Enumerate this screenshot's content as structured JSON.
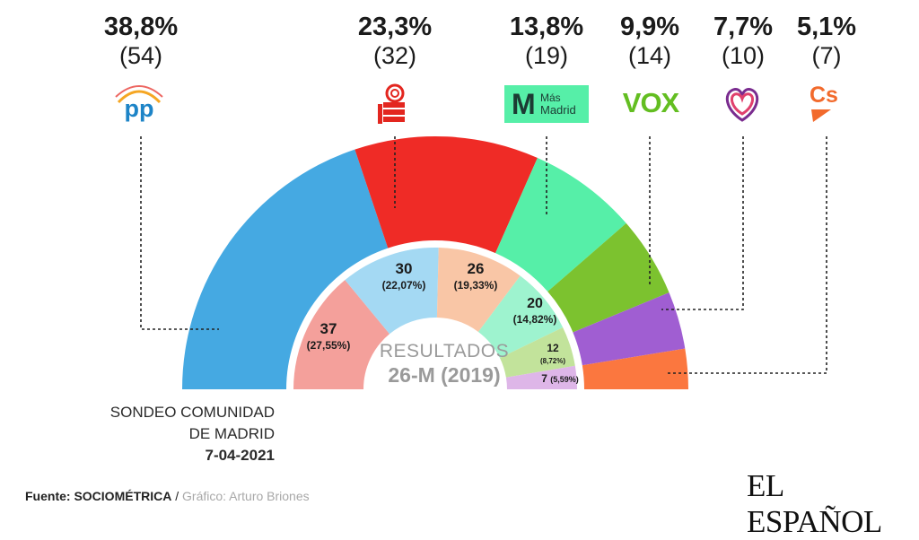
{
  "chart_data": [
    {
      "type": "parliament-semicircle",
      "title": "SONDEO COMUNIDAD DE MADRID",
      "title_lines": [
        "SONDEO COMUNIDAD",
        "DE MADRID"
      ],
      "date": "7-04-2021",
      "series": [
        {
          "party": "PP",
          "pct_label": "38,8%",
          "seats_label": "(54)",
          "pct": 38.8,
          "seats": 54,
          "color": "#45a9e2",
          "logo": "pp-logo"
        },
        {
          "party": "PSOE",
          "pct_label": "23,3%",
          "seats_label": "(32)",
          "pct": 23.3,
          "seats": 32,
          "color": "#ef2b26",
          "logo": "psoe-fist-rose-logo"
        },
        {
          "party": "Más Madrid",
          "pct_label": "13,8%",
          "seats_label": "(19)",
          "pct": 13.8,
          "seats": 19,
          "color": "#56efa8",
          "logo": "mas-madrid-logo"
        },
        {
          "party": "VOX",
          "pct_label": "9,9%",
          "seats_label": "(14)",
          "pct": 9.9,
          "seats": 14,
          "color": "#7cc22f",
          "logo": "vox-logo"
        },
        {
          "party": "Unidas Podemos",
          "pct_label": "7,7%",
          "seats_label": "(10)",
          "pct": 7.7,
          "seats": 10,
          "color": "#a05ed2",
          "logo": "heart-logo"
        },
        {
          "party": "Cs",
          "pct_label": "5,1%",
          "seats_label": "(7)",
          "pct": 5.1,
          "seats": 7,
          "color": "#fb773f",
          "logo": "cs-logo"
        }
      ]
    },
    {
      "type": "parliament-semicircle",
      "title_lines": [
        "RESULTADOS",
        "26-M (2019)"
      ],
      "series": [
        {
          "party": "PSOE",
          "seats": 37,
          "pct_label": "(27,55%)",
          "color": "#f4a09b"
        },
        {
          "party": "PP",
          "seats": 30,
          "pct_label": "(22,07%)",
          "color": "#a4d9f3"
        },
        {
          "party": "Cs",
          "seats": 26,
          "pct_label": "(19,33%)",
          "color": "#f9c6a6"
        },
        {
          "party": "Más Madrid",
          "seats": 20,
          "pct_label": "(14,82%)",
          "color": "#9ef3cf"
        },
        {
          "party": "VOX",
          "seats": 12,
          "pct_label": "(8,72%)",
          "color": "#c2e39b"
        },
        {
          "party": "Podemos",
          "seats": 7,
          "pct_label": "(5,59%)",
          "color": "#deb6e8"
        }
      ]
    }
  ],
  "logos": {
    "pp": "pp",
    "mas_madrid": [
      "Más",
      "Madrid"
    ],
    "vox": "VOX",
    "cs": "Cs"
  },
  "footer": {
    "source_prefix": "Fuente:",
    "source_name": "SOCIOMÉTRICA",
    "separator": "/",
    "credit": "Gráfico: Arturo Briones",
    "brand": "EL ESPAÑOL"
  }
}
